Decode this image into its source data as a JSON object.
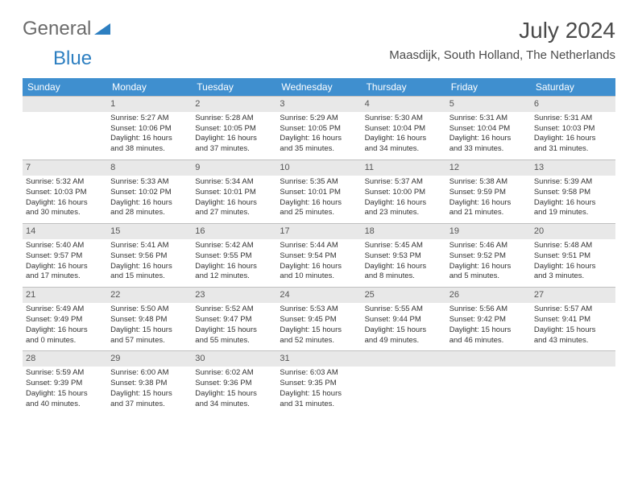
{
  "logo": {
    "general": "General",
    "blue": "Blue",
    "triangle_color": "#2d7fc1"
  },
  "month_title": "July 2024",
  "location": "Maasdijk, South Holland, The Netherlands",
  "colors": {
    "header_bg": "#3f8fcf",
    "header_fg": "#ffffff",
    "daynum_bg": "#e8e8e8",
    "daynum_border": "#bfbfbf",
    "text": "#333333"
  },
  "day_headers": [
    "Sunday",
    "Monday",
    "Tuesday",
    "Wednesday",
    "Thursday",
    "Friday",
    "Saturday"
  ],
  "weeks": [
    [
      {
        "n": "",
        "l": [
          "",
          "",
          "",
          ""
        ]
      },
      {
        "n": "1",
        "l": [
          "Sunrise: 5:27 AM",
          "Sunset: 10:06 PM",
          "Daylight: 16 hours",
          "and 38 minutes."
        ]
      },
      {
        "n": "2",
        "l": [
          "Sunrise: 5:28 AM",
          "Sunset: 10:05 PM",
          "Daylight: 16 hours",
          "and 37 minutes."
        ]
      },
      {
        "n": "3",
        "l": [
          "Sunrise: 5:29 AM",
          "Sunset: 10:05 PM",
          "Daylight: 16 hours",
          "and 35 minutes."
        ]
      },
      {
        "n": "4",
        "l": [
          "Sunrise: 5:30 AM",
          "Sunset: 10:04 PM",
          "Daylight: 16 hours",
          "and 34 minutes."
        ]
      },
      {
        "n": "5",
        "l": [
          "Sunrise: 5:31 AM",
          "Sunset: 10:04 PM",
          "Daylight: 16 hours",
          "and 33 minutes."
        ]
      },
      {
        "n": "6",
        "l": [
          "Sunrise: 5:31 AM",
          "Sunset: 10:03 PM",
          "Daylight: 16 hours",
          "and 31 minutes."
        ]
      }
    ],
    [
      {
        "n": "7",
        "l": [
          "Sunrise: 5:32 AM",
          "Sunset: 10:03 PM",
          "Daylight: 16 hours",
          "and 30 minutes."
        ]
      },
      {
        "n": "8",
        "l": [
          "Sunrise: 5:33 AM",
          "Sunset: 10:02 PM",
          "Daylight: 16 hours",
          "and 28 minutes."
        ]
      },
      {
        "n": "9",
        "l": [
          "Sunrise: 5:34 AM",
          "Sunset: 10:01 PM",
          "Daylight: 16 hours",
          "and 27 minutes."
        ]
      },
      {
        "n": "10",
        "l": [
          "Sunrise: 5:35 AM",
          "Sunset: 10:01 PM",
          "Daylight: 16 hours",
          "and 25 minutes."
        ]
      },
      {
        "n": "11",
        "l": [
          "Sunrise: 5:37 AM",
          "Sunset: 10:00 PM",
          "Daylight: 16 hours",
          "and 23 minutes."
        ]
      },
      {
        "n": "12",
        "l": [
          "Sunrise: 5:38 AM",
          "Sunset: 9:59 PM",
          "Daylight: 16 hours",
          "and 21 minutes."
        ]
      },
      {
        "n": "13",
        "l": [
          "Sunrise: 5:39 AM",
          "Sunset: 9:58 PM",
          "Daylight: 16 hours",
          "and 19 minutes."
        ]
      }
    ],
    [
      {
        "n": "14",
        "l": [
          "Sunrise: 5:40 AM",
          "Sunset: 9:57 PM",
          "Daylight: 16 hours",
          "and 17 minutes."
        ]
      },
      {
        "n": "15",
        "l": [
          "Sunrise: 5:41 AM",
          "Sunset: 9:56 PM",
          "Daylight: 16 hours",
          "and 15 minutes."
        ]
      },
      {
        "n": "16",
        "l": [
          "Sunrise: 5:42 AM",
          "Sunset: 9:55 PM",
          "Daylight: 16 hours",
          "and 12 minutes."
        ]
      },
      {
        "n": "17",
        "l": [
          "Sunrise: 5:44 AM",
          "Sunset: 9:54 PM",
          "Daylight: 16 hours",
          "and 10 minutes."
        ]
      },
      {
        "n": "18",
        "l": [
          "Sunrise: 5:45 AM",
          "Sunset: 9:53 PM",
          "Daylight: 16 hours",
          "and 8 minutes."
        ]
      },
      {
        "n": "19",
        "l": [
          "Sunrise: 5:46 AM",
          "Sunset: 9:52 PM",
          "Daylight: 16 hours",
          "and 5 minutes."
        ]
      },
      {
        "n": "20",
        "l": [
          "Sunrise: 5:48 AM",
          "Sunset: 9:51 PM",
          "Daylight: 16 hours",
          "and 3 minutes."
        ]
      }
    ],
    [
      {
        "n": "21",
        "l": [
          "Sunrise: 5:49 AM",
          "Sunset: 9:49 PM",
          "Daylight: 16 hours",
          "and 0 minutes."
        ]
      },
      {
        "n": "22",
        "l": [
          "Sunrise: 5:50 AM",
          "Sunset: 9:48 PM",
          "Daylight: 15 hours",
          "and 57 minutes."
        ]
      },
      {
        "n": "23",
        "l": [
          "Sunrise: 5:52 AM",
          "Sunset: 9:47 PM",
          "Daylight: 15 hours",
          "and 55 minutes."
        ]
      },
      {
        "n": "24",
        "l": [
          "Sunrise: 5:53 AM",
          "Sunset: 9:45 PM",
          "Daylight: 15 hours",
          "and 52 minutes."
        ]
      },
      {
        "n": "25",
        "l": [
          "Sunrise: 5:55 AM",
          "Sunset: 9:44 PM",
          "Daylight: 15 hours",
          "and 49 minutes."
        ]
      },
      {
        "n": "26",
        "l": [
          "Sunrise: 5:56 AM",
          "Sunset: 9:42 PM",
          "Daylight: 15 hours",
          "and 46 minutes."
        ]
      },
      {
        "n": "27",
        "l": [
          "Sunrise: 5:57 AM",
          "Sunset: 9:41 PM",
          "Daylight: 15 hours",
          "and 43 minutes."
        ]
      }
    ],
    [
      {
        "n": "28",
        "l": [
          "Sunrise: 5:59 AM",
          "Sunset: 9:39 PM",
          "Daylight: 15 hours",
          "and 40 minutes."
        ]
      },
      {
        "n": "29",
        "l": [
          "Sunrise: 6:00 AM",
          "Sunset: 9:38 PM",
          "Daylight: 15 hours",
          "and 37 minutes."
        ]
      },
      {
        "n": "30",
        "l": [
          "Sunrise: 6:02 AM",
          "Sunset: 9:36 PM",
          "Daylight: 15 hours",
          "and 34 minutes."
        ]
      },
      {
        "n": "31",
        "l": [
          "Sunrise: 6:03 AM",
          "Sunset: 9:35 PM",
          "Daylight: 15 hours",
          "and 31 minutes."
        ]
      },
      {
        "n": "",
        "l": [
          "",
          "",
          "",
          ""
        ]
      },
      {
        "n": "",
        "l": [
          "",
          "",
          "",
          ""
        ]
      },
      {
        "n": "",
        "l": [
          "",
          "",
          "",
          ""
        ]
      }
    ]
  ]
}
